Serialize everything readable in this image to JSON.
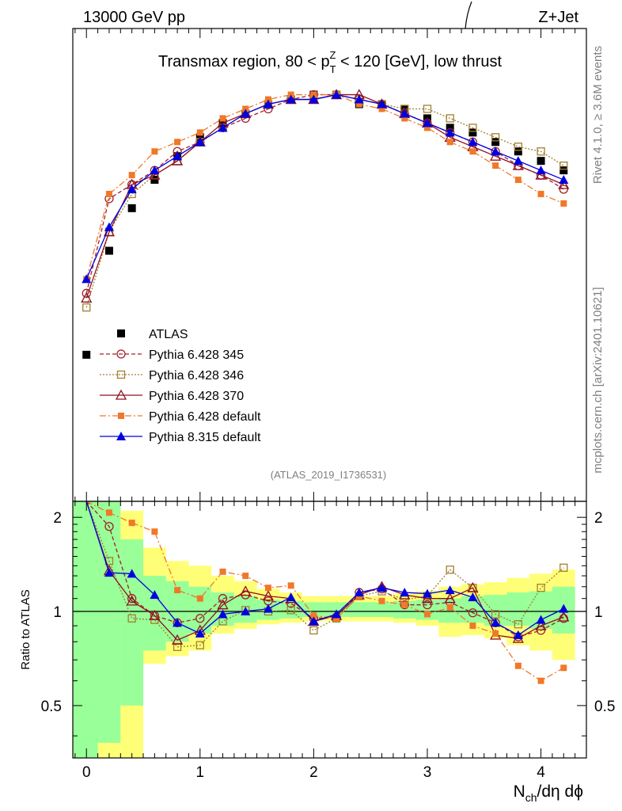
{
  "header": {
    "left": "13000 GeV pp",
    "right": "Z+Jet"
  },
  "title": {
    "prefix": "Transmax region, 80 < p",
    "sub": "T",
    "sup": "Z",
    "suffix": " < 120 [GeV], low thrust"
  },
  "side": {
    "rivet": "Rivet 4.1.0, ≥ 3.6M events",
    "mcplots": "mcplots.cern.ch [arXiv:2401.10621]"
  },
  "analysis_tag": "(ATLAS_2019_I1736531)",
  "ratio_ylabel": "Ratio to ATLAS",
  "xlabel": {
    "main": "N",
    "sub": "ch",
    "rest": "/dη dϕ"
  },
  "colors": {
    "atlas": "#000000",
    "p345": "#a0202a",
    "p346": "#a08030",
    "p370": "#901020",
    "pdef": "#f07828",
    "p8": "#0000e0",
    "band_green": "#99ff99",
    "band_yellow": "#ffff77"
  },
  "chart_data": [
    {
      "type": "line",
      "panel": "main",
      "x": [
        0,
        0.2,
        0.4,
        0.6,
        0.8,
        1.0,
        1.2,
        1.4,
        1.6,
        1.8,
        2.0,
        2.2,
        2.4,
        2.6,
        2.8,
        3.0,
        3.2,
        3.4,
        3.6,
        3.8,
        4.0,
        4.2
      ],
      "ylim": [
        0,
        1
      ],
      "y_tick_labels": "none",
      "series": [
        {
          "name": "ATLAS",
          "marker": "square-filled",
          "values": [
            0.31,
            0.53,
            0.62,
            0.68,
            0.73,
            0.77,
            0.8,
            0.82,
            0.84,
            0.85,
            0.86,
            0.86,
            0.84,
            0.84,
            0.83,
            0.81,
            0.79,
            0.78,
            0.76,
            0.74,
            0.72,
            0.7
          ]
        },
        {
          "name": "Pythia 6.428 345",
          "marker": "circle-open",
          "dash": "5,3",
          "values": [
            0.44,
            0.64,
            0.67,
            0.7,
            0.74,
            0.76,
            0.79,
            0.81,
            0.83,
            0.85,
            0.86,
            0.86,
            0.85,
            0.84,
            0.82,
            0.8,
            0.78,
            0.76,
            0.74,
            0.71,
            0.69,
            0.66
          ]
        },
        {
          "name": "Pythia 6.428 346",
          "marker": "square-open",
          "dash": "2,2",
          "values": [
            0.41,
            0.57,
            0.65,
            0.69,
            0.72,
            0.76,
            0.79,
            0.82,
            0.84,
            0.85,
            0.85,
            0.86,
            0.85,
            0.84,
            0.83,
            0.83,
            0.81,
            0.79,
            0.77,
            0.75,
            0.74,
            0.71
          ]
        },
        {
          "name": "Pythia 6.428 370",
          "marker": "triangle-open",
          "dash": "",
          "values": [
            0.43,
            0.57,
            0.67,
            0.69,
            0.72,
            0.76,
            0.8,
            0.82,
            0.84,
            0.85,
            0.85,
            0.86,
            0.86,
            0.84,
            0.82,
            0.8,
            0.77,
            0.75,
            0.73,
            0.71,
            0.69,
            0.67
          ]
        },
        {
          "name": "Pythia 6.428 default",
          "marker": "square-filled-small",
          "dash": "8,3,2,3",
          "values": [
            0.47,
            0.65,
            0.69,
            0.74,
            0.76,
            0.78,
            0.81,
            0.83,
            0.85,
            0.86,
            0.86,
            0.86,
            0.84,
            0.83,
            0.81,
            0.79,
            0.76,
            0.74,
            0.71,
            0.68,
            0.65,
            0.63
          ]
        },
        {
          "name": "Pythia 8.315 default",
          "marker": "triangle-filled",
          "dash": "",
          "values": [
            0.47,
            0.58,
            0.66,
            0.7,
            0.73,
            0.76,
            0.79,
            0.82,
            0.84,
            0.85,
            0.85,
            0.86,
            0.85,
            0.84,
            0.82,
            0.8,
            0.78,
            0.76,
            0.74,
            0.72,
            0.7,
            0.68
          ]
        }
      ]
    },
    {
      "type": "line",
      "panel": "ratio",
      "x": [
        0,
        0.2,
        0.4,
        0.6,
        0.8,
        1.0,
        1.2,
        1.4,
        1.6,
        1.8,
        2.0,
        2.2,
        2.4,
        2.6,
        2.8,
        3.0,
        3.2,
        3.4,
        3.6,
        3.8,
        4.0,
        4.2
      ],
      "xlim": [
        -0.12,
        4.4
      ],
      "ylim": [
        0.34,
        2.25
      ],
      "yscale": "log",
      "x_ticks": [
        0,
        1,
        2,
        3,
        4
      ],
      "x_tick_labels": [
        "0",
        "1",
        "2",
        "3",
        "4"
      ],
      "y_ticks": [
        0.5,
        1,
        2
      ],
      "y_tick_labels": [
        "0.5",
        "1",
        "2"
      ],
      "reference_line": 1,
      "band_edges": [
        -0.12,
        0.1,
        0.3,
        0.5,
        0.7,
        0.9,
        1.1,
        1.3,
        1.5,
        1.7,
        1.9,
        2.1,
        2.3,
        2.5,
        2.7,
        2.9,
        3.1,
        3.3,
        3.5,
        3.7,
        3.9,
        4.1,
        4.3
      ],
      "band_green": [
        [
          0.34,
          2.25
        ],
        [
          0.38,
          2.25
        ],
        [
          0.5,
          1.7
        ],
        [
          0.75,
          1.3
        ],
        [
          0.8,
          1.25
        ],
        [
          0.85,
          1.2
        ],
        [
          0.9,
          1.15
        ],
        [
          0.92,
          1.12
        ],
        [
          0.94,
          1.09
        ],
        [
          0.95,
          1.08
        ],
        [
          0.96,
          1.07
        ],
        [
          0.96,
          1.07
        ],
        [
          0.96,
          1.07
        ],
        [
          0.96,
          1.07
        ],
        [
          0.95,
          1.08
        ],
        [
          0.94,
          1.09
        ],
        [
          0.92,
          1.1
        ],
        [
          0.92,
          1.12
        ],
        [
          0.9,
          1.13
        ],
        [
          0.9,
          1.15
        ],
        [
          0.88,
          1.16
        ],
        [
          0.85,
          1.2
        ]
      ],
      "band_yellow": [
        [
          0.34,
          2.25
        ],
        [
          0.34,
          2.25
        ],
        [
          0.34,
          2.1
        ],
        [
          0.68,
          1.6
        ],
        [
          0.72,
          1.45
        ],
        [
          0.75,
          1.4
        ],
        [
          0.85,
          1.3
        ],
        [
          0.88,
          1.25
        ],
        [
          0.91,
          1.18
        ],
        [
          0.92,
          1.15
        ],
        [
          0.93,
          1.12
        ],
        [
          0.93,
          1.12
        ],
        [
          0.93,
          1.12
        ],
        [
          0.93,
          1.12
        ],
        [
          0.92,
          1.14
        ],
        [
          0.9,
          1.16
        ],
        [
          0.83,
          1.2
        ],
        [
          0.84,
          1.22
        ],
        [
          0.82,
          1.24
        ],
        [
          0.78,
          1.28
        ],
        [
          0.75,
          1.32
        ],
        [
          0.7,
          1.36
        ]
      ],
      "series": [
        {
          "name": "Pythia 6.428 345",
          "values": [
            2.25,
            1.87,
            1.1,
            0.97,
            0.92,
            0.95,
            1.1,
            1.13,
            1.08,
            1.06,
            0.95,
            0.96,
            1.15,
            1.18,
            1.05,
            1.05,
            1.07,
            0.99,
            0.92,
            0.83,
            0.87,
            0.95
          ]
        },
        {
          "name": "Pythia 6.428 346",
          "values": [
            2.25,
            1.45,
            0.95,
            0.94,
            0.77,
            0.78,
            0.93,
            1.01,
            1.0,
            1.01,
            0.87,
            0.95,
            1.12,
            1.16,
            1.09,
            1.12,
            1.36,
            1.19,
            0.98,
            0.91,
            1.19,
            1.38
          ]
        },
        {
          "name": "Pythia 6.428 370",
          "values": [
            2.25,
            1.35,
            1.08,
            0.97,
            0.81,
            0.87,
            1.05,
            1.16,
            1.12,
            1.1,
            0.93,
            0.97,
            1.13,
            1.2,
            1.13,
            1.1,
            1.1,
            1.19,
            0.84,
            0.82,
            0.9,
            0.96
          ]
        },
        {
          "name": "Pythia 6.428 default",
          "values": [
            2.25,
            2.07,
            1.92,
            1.8,
            1.17,
            1.1,
            1.34,
            1.3,
            1.19,
            1.21,
            0.97,
            0.95,
            1.12,
            1.08,
            1.05,
            0.98,
            1.03,
            0.9,
            0.85,
            0.67,
            0.6,
            0.66
          ]
        },
        {
          "name": "Pythia 8.315 default",
          "values": [
            2.25,
            1.33,
            1.32,
            1.13,
            0.92,
            0.85,
            0.98,
            1.0,
            1.02,
            1.11,
            0.93,
            0.98,
            1.15,
            1.19,
            1.15,
            1.14,
            1.17,
            1.11,
            0.92,
            0.84,
            0.94,
            1.02
          ]
        }
      ]
    }
  ],
  "legend": {
    "position": "middle-left",
    "entries": [
      "ATLAS",
      "Pythia 6.428 345",
      "Pythia 6.428 346",
      "Pythia 6.428 370",
      "Pythia 6.428 default",
      "Pythia 8.315 default"
    ]
  }
}
